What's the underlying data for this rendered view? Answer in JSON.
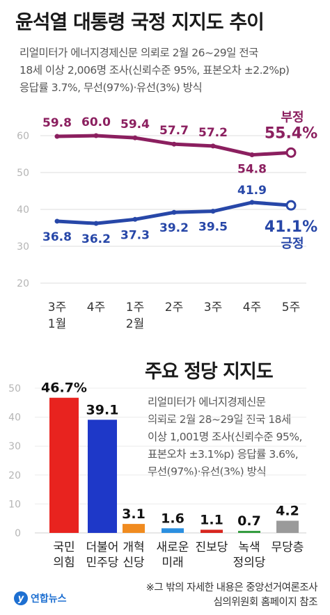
{
  "title": "윤석열 대통령 국정 지지도 추이",
  "subtitle_lines": "리얼미터가 에너지경제신문 의뢰로 2월 26~29일 전국\n18세 이상 2,006명 조사(신뢰수준 95%, 표본오차 ±2.2%p)\n응답률 3.7%, 무선(97%)·유선(3%) 방식",
  "party_title": "주요 정당 지지도",
  "party_subtitle_lines": "리얼미터가 에너지경제신문\n의뢰로 2월 28~29일 전국 18세\n이상 1,001명 조사(신뢰수준 95%,\n표본오차 ±3.1%p) 응답률 3.6%,\n무선(97%)·유선(3%) 방식",
  "footnote": "※그 밖의 자세한 내용은 중앙선거여론조사\n심의위원회 홈페이지 참조",
  "logo_text": "연합뉴스",
  "chart_data": [
    {
      "type": "line",
      "title": "윤석열 대통령 국정 지지도 추이",
      "categories": [
        [
          "3주",
          "1월"
        ],
        [
          "4주",
          ""
        ],
        [
          "1주",
          "2월"
        ],
        [
          "2주",
          ""
        ],
        [
          "3주",
          ""
        ],
        [
          "4주",
          ""
        ],
        [
          "5주",
          ""
        ]
      ],
      "y_ticks": [
        20,
        30,
        40,
        50,
        60
      ],
      "ylim": [
        20,
        62
      ],
      "grid": true,
      "series": [
        {
          "name": "부정",
          "values": [
            59.8,
            60.0,
            59.4,
            57.7,
            57.2,
            54.8,
            55.4
          ],
          "labels": [
            "59.8",
            "60.0",
            "59.4",
            "57.7",
            "57.2",
            "54.8",
            "55.4%"
          ],
          "color": "#8b1f5f"
        },
        {
          "name": "긍정",
          "values": [
            36.8,
            36.2,
            37.3,
            39.2,
            39.5,
            41.9,
            41.1
          ],
          "labels": [
            "36.8",
            "36.2",
            "37.3",
            "39.2",
            "39.5",
            "41.9",
            "41.1%"
          ],
          "color": "#2747a8"
        }
      ]
    },
    {
      "type": "bar",
      "title": "주요 정당 지지도",
      "categories": [
        [
          "국민",
          "의힘"
        ],
        [
          "더불어",
          "민주당"
        ],
        [
          "개혁",
          "신당"
        ],
        [
          "새로운",
          "미래"
        ],
        [
          "진보당",
          ""
        ],
        [
          "녹색",
          "정의당"
        ],
        [
          "무당층",
          ""
        ]
      ],
      "values": [
        46.7,
        39.1,
        3.1,
        1.6,
        1.1,
        0.7,
        4.2
      ],
      "labels": [
        "46.7%",
        "39.1",
        "3.1",
        "1.6",
        "1.1",
        "0.7",
        "4.2"
      ],
      "colors": [
        "#e8231f",
        "#1e38c8",
        "#f08b1f",
        "#2b8fe0",
        "#d8261f",
        "#2f9a3a",
        "#9a9a9a"
      ],
      "y_ticks": [
        0,
        10,
        20,
        30,
        40,
        50
      ],
      "ylim": [
        0,
        50
      ]
    }
  ]
}
